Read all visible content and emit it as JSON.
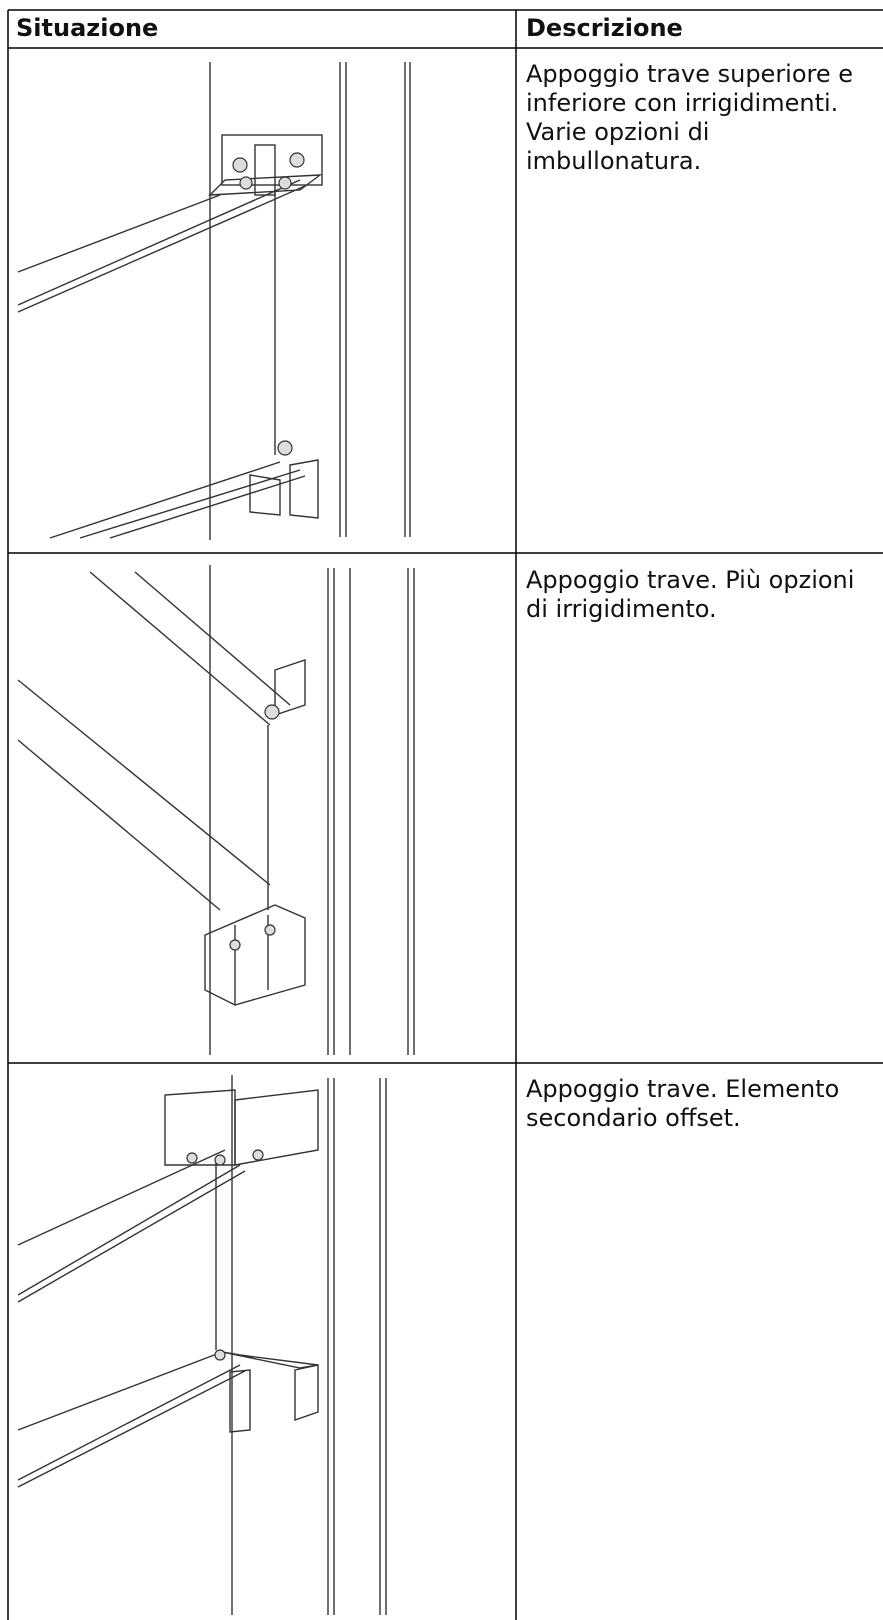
{
  "table": {
    "headers": [
      "Situazione",
      "Descrizione"
    ],
    "rows": [
      [
        "Appoggio trave superiore e inferiore con irrigidimenti. Varie opzioni di imbullonatura."
      ],
      [
        "Appoggio trave. Più opzioni di irrigidimento."
      ],
      [
        "Appoggio trave. Elemento secondario offset."
      ]
    ]
  }
}
